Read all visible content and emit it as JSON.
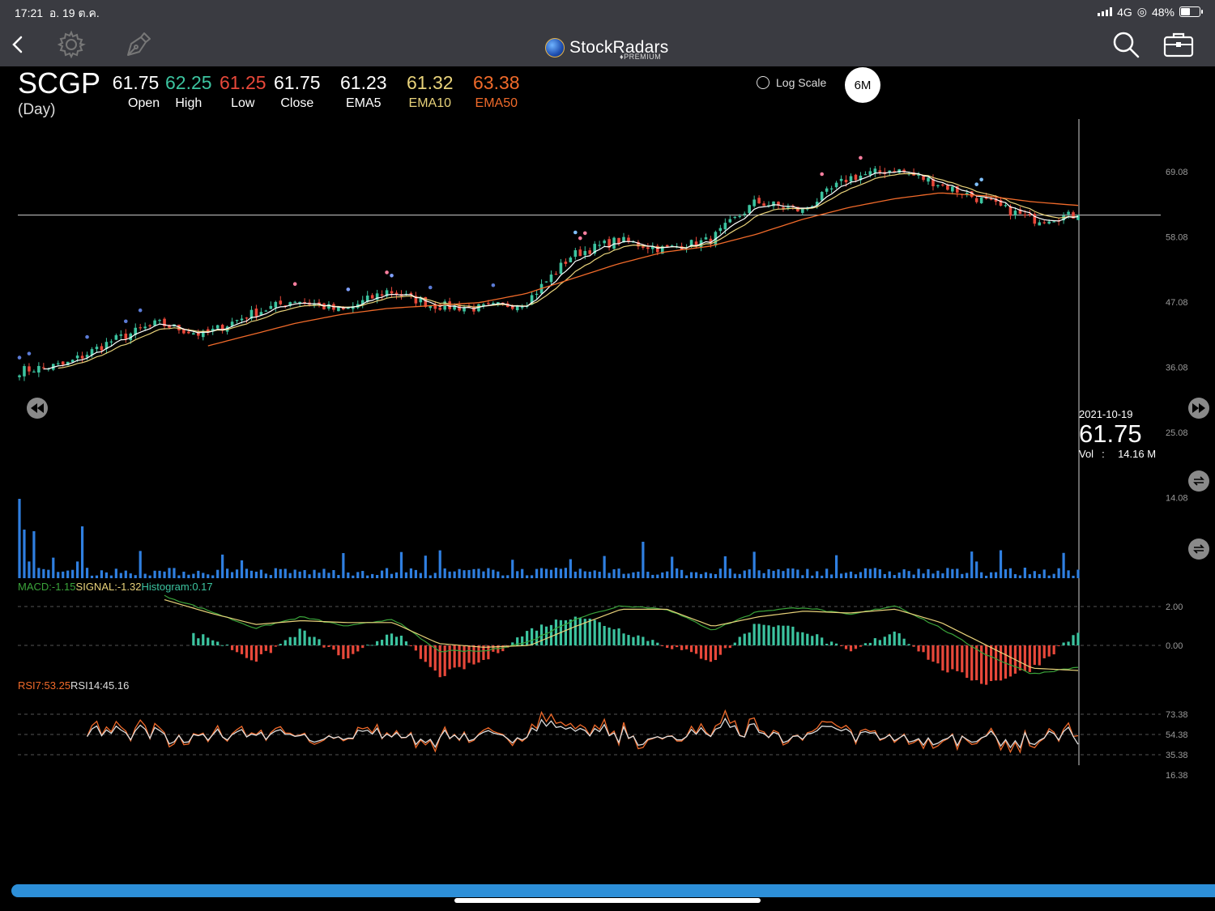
{
  "status": {
    "time": "17:21",
    "date": "อ. 19 ต.ค.",
    "network": "4G",
    "battery": "48%",
    "battery_level": 0.48
  },
  "nav": {
    "brand": "StockRadars",
    "premium": "PREMIUM",
    "icons": [
      "back-icon",
      "settings-gear-icon",
      "drawing-pen-icon",
      "search-icon",
      "portfolio-briefcase-icon"
    ]
  },
  "quote": {
    "symbol": "SCGP",
    "interval": "(Day)",
    "open": {
      "value": "61.75",
      "label": "Open",
      "color": "#ffffff"
    },
    "high": {
      "value": "62.25",
      "label": "High",
      "color": "#3cc4a0"
    },
    "low": {
      "value": "61.25",
      "label": "Low",
      "color": "#e8483a"
    },
    "close": {
      "value": "61.75",
      "label": "Close",
      "color": "#ffffff"
    },
    "ema5": {
      "value": "61.23",
      "label": "EMA5",
      "color": "#ffffff"
    },
    "ema10": {
      "value": "61.32",
      "label": "EMA10",
      "color": "#e8d27a"
    },
    "ema50": {
      "value": "63.38",
      "label": "EMA50",
      "color": "#f06a2a"
    }
  },
  "controls": {
    "log_scale_label": "Log Scale",
    "log_scale_checked": false,
    "range": "6M"
  },
  "crosshair": {
    "date": "2021-10-19",
    "price": "61.75",
    "vol_label": "Vol",
    "vol_value": "14.16 M"
  },
  "price_axis": [
    "69.08",
    "58.08",
    "47.08",
    "36.08",
    "25.08",
    "14.08"
  ],
  "macd": {
    "macd_label": "MACD:-1.15",
    "signal_label": "SIGNAL:-1.32",
    "hist_label": "Histogram:0.17",
    "axis": [
      "2.00",
      "0.00"
    ]
  },
  "rsi": {
    "rsi7_label": "RSI7:53.25",
    "rsi14_label": "RSI14:45.16",
    "axis": [
      "73.38",
      "54.38",
      "35.38",
      "16.38"
    ]
  },
  "chart_data": {
    "type": "candlestick",
    "symbol": "SCGP",
    "interval": "Day",
    "range": "6M",
    "last_date": "2021-10-19",
    "price_axis_ticks": [
      69.08,
      58.08,
      47.08,
      36.08,
      25.08,
      14.08
    ],
    "close_anchors": [
      35.5,
      36.5,
      40.5,
      43.5,
      41.5,
      45.0,
      47.5,
      45.5,
      49.0,
      46.5,
      46.0,
      47.0,
      55.0,
      57.5,
      56.0,
      57.5,
      64.0,
      62.5,
      68.0,
      69.5,
      67.0,
      64.0,
      61.0,
      61.75
    ],
    "ema50_anchors": [
      null,
      null,
      null,
      null,
      39.5,
      41.5,
      43.5,
      45.0,
      46.0,
      46.5,
      47.0,
      48.5,
      51.0,
      53.5,
      55.5,
      56.5,
      58.5,
      61.0,
      63.0,
      64.5,
      65.5,
      65.0,
      64.0,
      63.38
    ],
    "current_price": 61.75,
    "indicators": {
      "open": 61.75,
      "high": 62.25,
      "low": 61.25,
      "close": 61.75,
      "ema5": 61.23,
      "ema10": 61.32,
      "ema50": 63.38
    },
    "volume_last": "14.16 M",
    "macd": {
      "macd": -1.15,
      "signal": -1.32,
      "histogram": 0.17,
      "axis_ticks": [
        2.0,
        0.0
      ]
    },
    "rsi": {
      "rsi7": 53.25,
      "rsi14": 45.16,
      "axis_ticks": [
        73.38,
        54.38,
        35.38,
        16.38
      ]
    },
    "colors": {
      "up": "#3cc4a0",
      "down": "#e8483a",
      "ema5": "#ffffff",
      "ema10": "#e8d27a",
      "ema50": "#f06a2a",
      "volume": "#2f7fe0",
      "rsi7": "#f06a2a",
      "rsi14": "#dddddd",
      "macd": "#3aa33a",
      "signal": "#e8d27a"
    }
  }
}
